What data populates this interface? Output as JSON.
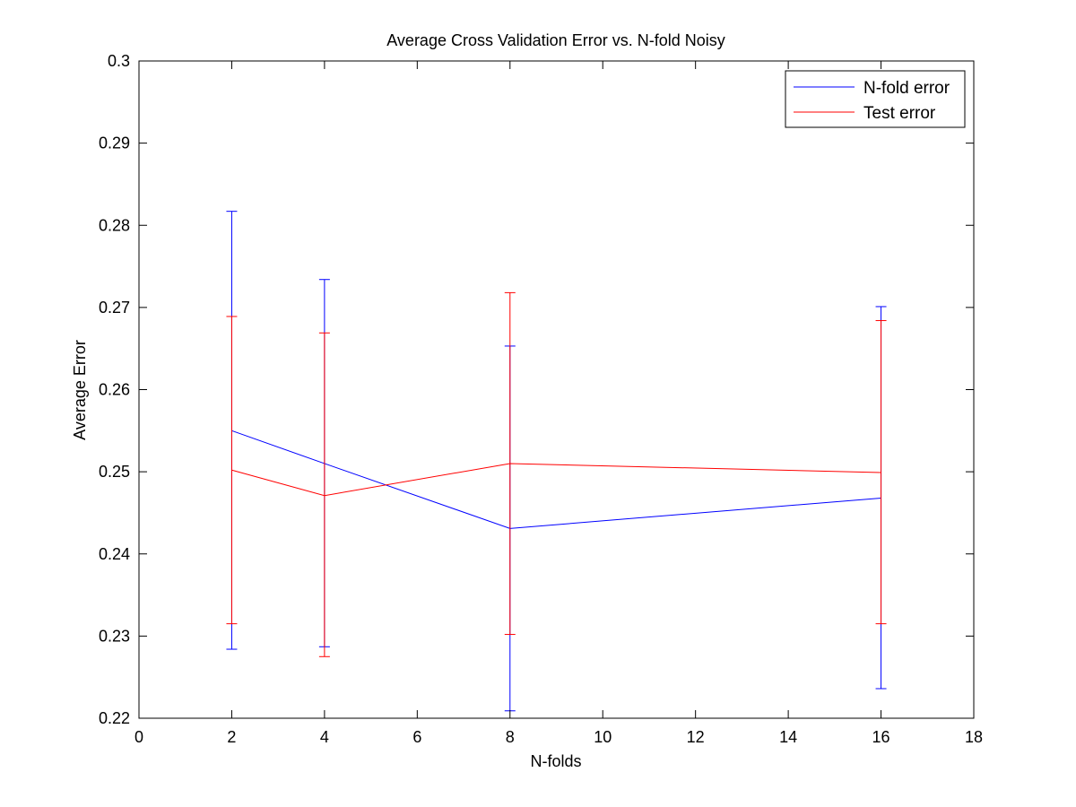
{
  "chart_data": {
    "type": "line",
    "title": "Average Cross Validation Error vs. N-fold Noisy",
    "xlabel": "N-folds",
    "ylabel": "Average Error",
    "xlim": [
      0,
      18
    ],
    "ylim": [
      0.22,
      0.3
    ],
    "xticks": [
      0,
      2,
      4,
      6,
      8,
      10,
      12,
      14,
      16,
      18
    ],
    "yticks": [
      0.22,
      0.23,
      0.24,
      0.25,
      0.26,
      0.27,
      0.28,
      0.29,
      0.3
    ],
    "xtick_labels": [
      "0",
      "2",
      "4",
      "6",
      "8",
      "10",
      "12",
      "14",
      "16",
      "18"
    ],
    "ytick_labels": [
      "0.22",
      "0.23",
      "0.24",
      "0.25",
      "0.26",
      "0.27",
      "0.28",
      "0.29",
      "0.3"
    ],
    "legend_position": "top-right",
    "grid": false,
    "series": [
      {
        "name": "N-fold error",
        "color": "#0000ff",
        "x": [
          2,
          4,
          8,
          16
        ],
        "y": [
          0.255,
          0.251,
          0.2431,
          0.2468
        ],
        "err_low": [
          0.2284,
          0.2287,
          0.2209,
          0.2236
        ],
        "err_high": [
          0.2817,
          0.2734,
          0.2653,
          0.2701
        ]
      },
      {
        "name": "Test error",
        "color": "#ff0000",
        "x": [
          2,
          4,
          8,
          16
        ],
        "y": [
          0.2502,
          0.2471,
          0.251,
          0.2499
        ],
        "err_low": [
          0.2315,
          0.2275,
          0.2302,
          0.2315
        ],
        "err_high": [
          0.2689,
          0.2669,
          0.2718,
          0.2684
        ]
      }
    ]
  }
}
